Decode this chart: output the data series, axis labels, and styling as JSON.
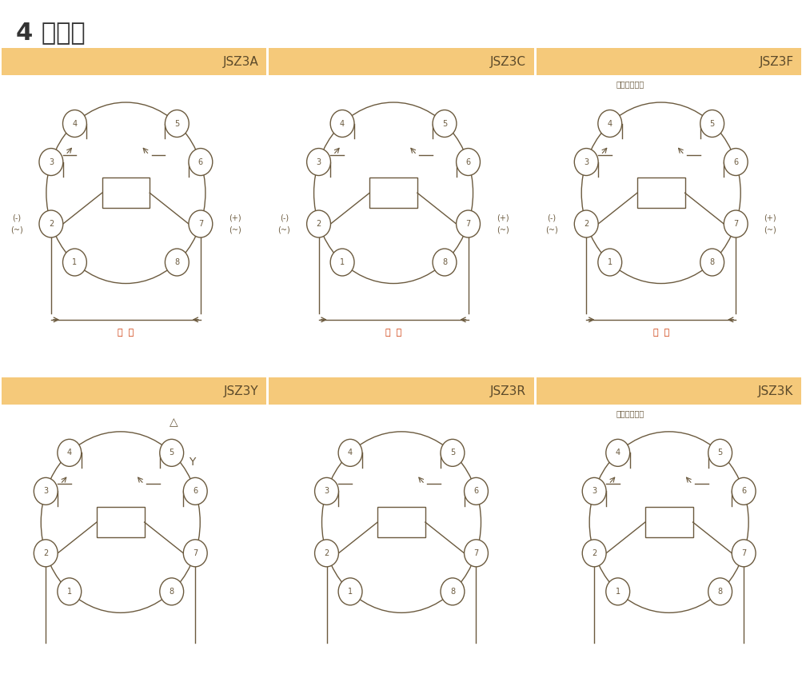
{
  "title": "4 接线图",
  "panels": [
    {
      "label": "JSZ3A",
      "col": 0,
      "row": 0,
      "type": "A"
    },
    {
      "label": "JSZ3C",
      "col": 1,
      "row": 0,
      "type": "C"
    },
    {
      "label": "JSZ3F",
      "col": 2,
      "row": 0,
      "type": "F"
    },
    {
      "label": "JSZ3Y",
      "col": 0,
      "row": 1,
      "type": "Y"
    },
    {
      "label": "JSZ3R",
      "col": 1,
      "row": 1,
      "type": "R"
    },
    {
      "label": "JSZ3K",
      "col": 2,
      "row": 1,
      "type": "K"
    }
  ],
  "bg_color": "#FAEFD4",
  "header_color": "#F5C97A",
  "border_color": "#C8A050",
  "line_color": "#6B5A3E",
  "circle_color": "#FFFFFF",
  "text_color": "#5C4A2A",
  "red_text": "#CC3300",
  "title_color": "#333333"
}
